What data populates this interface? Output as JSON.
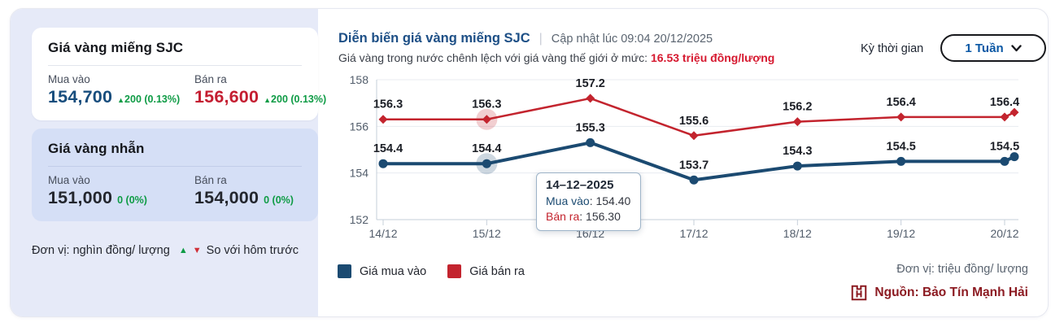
{
  "colors": {
    "buy_blue": "#174d7d",
    "sell_red": "#c41e31",
    "change_green": "#0e9b45",
    "title_blue": "#1d4f86",
    "diff_red": "#d6182f",
    "select_blue": "#0a57a4",
    "source_maroon": "#8c1b22",
    "sidebar_bg": "#e6eaf8",
    "ring_card_bg": "#d5dff6"
  },
  "icons": {
    "up_arrow": "▲",
    "down_arrow": "▼",
    "separator": "|"
  },
  "sidebar": {
    "cards": [
      {
        "title": "Giá vàng miếng SJC",
        "buy_label": "Mua vào",
        "buy_value": "154,700",
        "buy_arrow": "▲",
        "buy_change": "200 (0.13%)",
        "sell_label": "Bán ra",
        "sell_value": "156,600",
        "sell_arrow": "▲",
        "sell_change": "200 (0.13%)"
      },
      {
        "title": "Giá vàng nhẫn",
        "buy_label": "Mua vào",
        "buy_value": "151,000",
        "buy_arrow": "",
        "buy_change": "0 (0%)",
        "sell_label": "Bán ra",
        "sell_value": "154,000",
        "sell_arrow": "",
        "sell_change": "0 (0%)"
      }
    ],
    "unit_note": "Đơn vị: nghìn đồng/ lượng",
    "compare_note": "So với hôm trước"
  },
  "chart_header": {
    "title": "Diễn biến giá vàng miếng SJC",
    "updated": "Cập nhật lúc 09:04 20/12/2025",
    "diff_text": "Giá vàng trong nước chênh lệch với giá vàng thế giới ở mức:",
    "diff_value": "16.53 triệu đồng/lượng"
  },
  "period": {
    "label": "Kỳ thời gian",
    "selected": "1 Tuần"
  },
  "chart_data": {
    "type": "line",
    "title": "Diễn biến giá vàng miếng SJC",
    "x": [
      "14/12",
      "15/12",
      "16/12",
      "17/12",
      "18/12",
      "19/12",
      "20/12"
    ],
    "series": [
      {
        "name": "Giá mua vào",
        "color": "#1b4a71",
        "marker": "circle",
        "values": [
          154.4,
          154.4,
          155.3,
          153.7,
          154.3,
          154.5,
          154.5
        ],
        "latest": 154.7
      },
      {
        "name": "Giá bán ra",
        "color": "#c3242e",
        "marker": "diamond",
        "values": [
          156.3,
          156.3,
          157.2,
          155.6,
          156.2,
          156.4,
          156.4
        ],
        "latest": 156.6
      }
    ],
    "ylim": [
      152,
      158
    ],
    "yticks": [
      152,
      154,
      156,
      158
    ],
    "grid": true,
    "legend_position": "bottom-left",
    "highlight_index": 1,
    "ylabel": "",
    "xlabel": "",
    "unit": "triệu đồng/ lượng"
  },
  "tooltip": {
    "date": "14–12–2025",
    "buy_label": "Mua vào",
    "buy_value": "154.40",
    "sell_label": "Bán ra",
    "sell_value": "156.30"
  },
  "footer": {
    "unit_note": "Đơn vị: triệu đồng/ lượng",
    "source": "Nguồn: Bảo Tín Mạnh Hải"
  }
}
